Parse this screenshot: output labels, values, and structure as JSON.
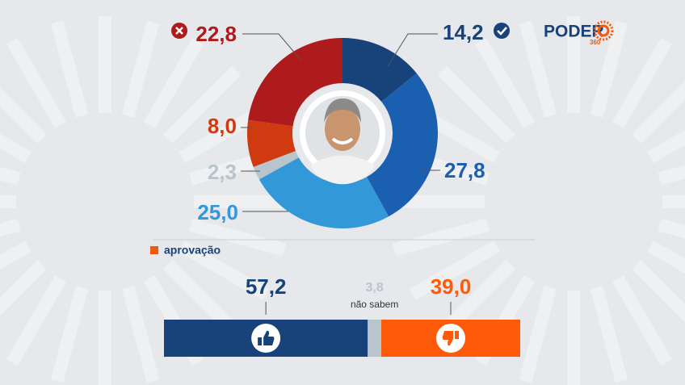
{
  "chart_data": [
    {
      "type": "pie",
      "donut": true,
      "values": [
        14.2,
        27.8,
        25.0,
        2.3,
        8.0,
        22.8
      ],
      "value_labels": [
        "14,2",
        "27,8",
        "25,0",
        "2,3",
        "8,0",
        "22,8"
      ],
      "colors": [
        "#17427a",
        "#1a5fb0",
        "#3398d8",
        "#b9c5cd",
        "#cf3a10",
        "#ad1b1d"
      ],
      "label_colors": [
        "#17427a",
        "#1a5fb0",
        "#3398d8",
        "#b9c5cd",
        "#cf3a10",
        "#ad1b1d"
      ]
    },
    {
      "type": "bar",
      "stacked": true,
      "orientation": "horizontal",
      "title": "aprovação",
      "title_color": "#f15a0d",
      "xlim": [
        0,
        100
      ],
      "series": [
        {
          "color": "#17427a",
          "values": [
            57.2
          ],
          "value_labels": [
            "57,2"
          ]
        },
        {
          "name": "não sabem",
          "color": "#b9c5cd",
          "values": [
            3.8
          ],
          "value_labels": [
            "3,8"
          ]
        },
        {
          "color": "#ff5a0a",
          "values": [
            39.0
          ],
          "value_labels": [
            "39,0"
          ]
        }
      ]
    }
  ],
  "logo": {
    "text": "PODER",
    "number": "360"
  }
}
